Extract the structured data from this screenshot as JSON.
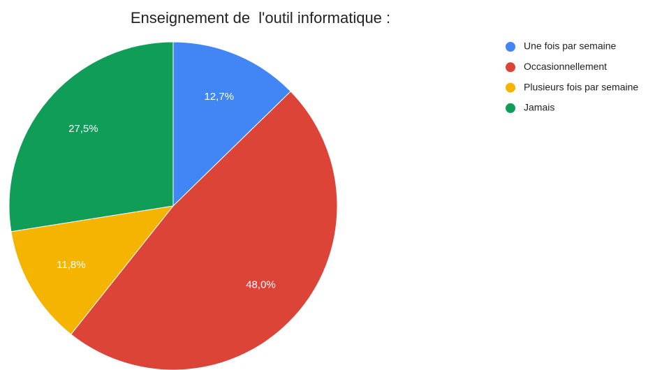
{
  "chart_data": {
    "type": "pie",
    "title": "Enseignement de  l'outil informatique :",
    "categories": [
      "Une fois par semaine",
      "Occasionnellement",
      "Plusieurs fois par semaine",
      "Jamais"
    ],
    "values": [
      12.7,
      48.0,
      11.8,
      27.5
    ],
    "value_labels": [
      "12,7%",
      "48,0%",
      "11,8%",
      "27,5%"
    ],
    "colors": [
      "#4285f4",
      "#db4437",
      "#f4b400",
      "#0f9d58"
    ],
    "legend": "right"
  }
}
